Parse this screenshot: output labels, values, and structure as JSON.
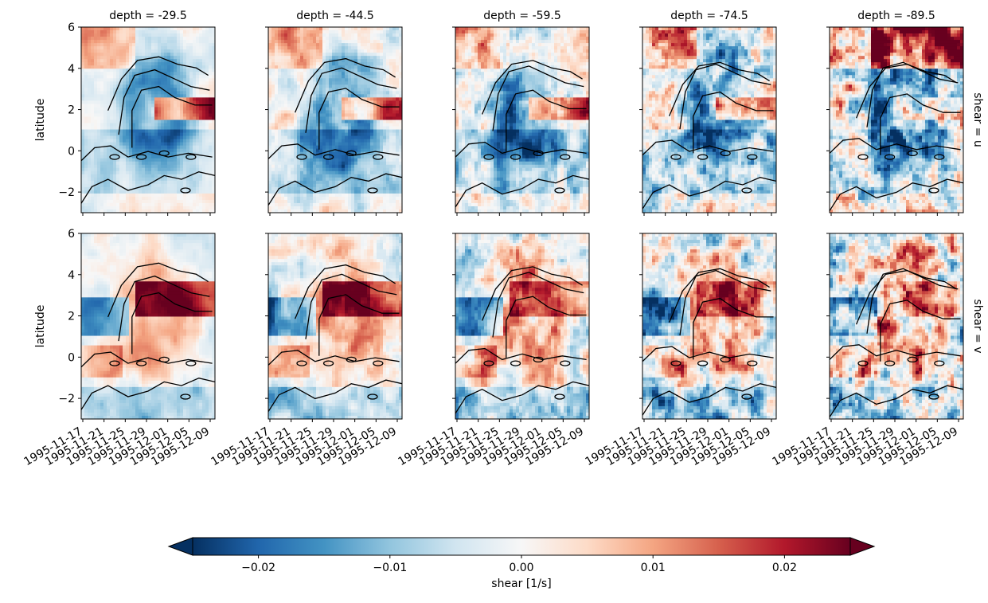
{
  "chart_data": {
    "type": "heatmap",
    "colormap": "RdBu_r",
    "columns": [
      {
        "depth_label": "depth = -29.5",
        "depth": -29.5
      },
      {
        "depth_label": "depth = -44.5",
        "depth": -44.5
      },
      {
        "depth_label": "depth = -59.5",
        "depth": -59.5
      },
      {
        "depth_label": "depth = -74.5",
        "depth": -74.5
      },
      {
        "depth_label": "depth = -89.5",
        "depth": -89.5
      }
    ],
    "rows": [
      {
        "shear_label": "shear = u",
        "shear": "u"
      },
      {
        "shear_label": "shear = v",
        "shear": "v"
      }
    ],
    "ylabel": "latitude",
    "ylim": [
      -3,
      6
    ],
    "yticks": [
      -2,
      0,
      2,
      4,
      6
    ],
    "ytick_labels": [
      "−2",
      "0",
      "2",
      "4",
      "6"
    ],
    "x_range": [
      "1995-11-16",
      "1995-12-12"
    ],
    "xtick_labels": [
      "1995-11-17",
      "1995-11-21",
      "1995-11-25",
      "1995-11-29",
      "1995-12-01",
      "1995-12-05",
      "1995-12-09"
    ],
    "colorbar": {
      "label": "shear [1/s]",
      "vmin": -0.025,
      "vmax": 0.025,
      "extend": "both",
      "ticks": [
        -0.02,
        -0.01,
        0.0,
        0.01,
        0.02
      ],
      "tick_labels": [
        "−0.02",
        "−0.01",
        "0.00",
        "0.01",
        "0.02"
      ]
    },
    "contour_color": "#000000"
  }
}
